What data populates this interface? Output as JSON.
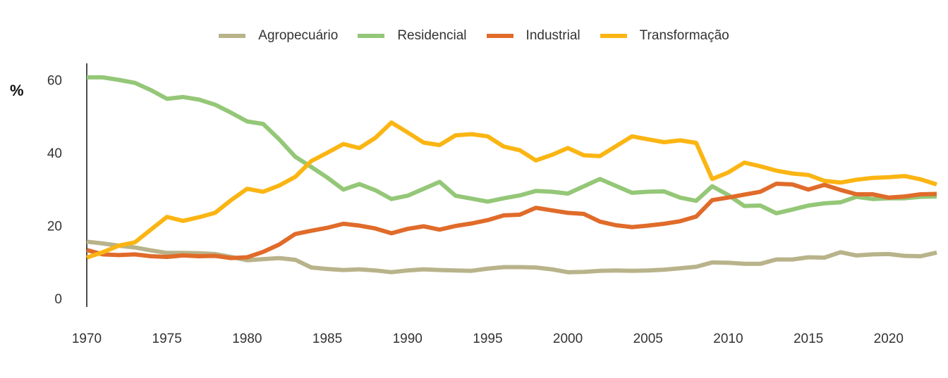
{
  "chart_data": {
    "type": "line",
    "ylabel": "%",
    "ylim": [
      0,
      63
    ],
    "xlim": [
      1970,
      2023
    ],
    "yticks": [
      0,
      20,
      40,
      60
    ],
    "xticks": [
      1970,
      1975,
      1980,
      1985,
      1990,
      1995,
      2000,
      2005,
      2010,
      2015,
      2020
    ],
    "legend_position": "top-center",
    "grid": false,
    "x": [
      1970,
      1971,
      1972,
      1973,
      1974,
      1975,
      1976,
      1977,
      1978,
      1979,
      1980,
      1981,
      1982,
      1983,
      1984,
      1985,
      1986,
      1987,
      1988,
      1989,
      1990,
      1991,
      1992,
      1993,
      1994,
      1995,
      1996,
      1997,
      1998,
      1999,
      2000,
      2001,
      2002,
      2003,
      2004,
      2005,
      2006,
      2007,
      2008,
      2009,
      2010,
      2011,
      2012,
      2013,
      2014,
      2015,
      2016,
      2017,
      2018,
      2019,
      2020,
      2021,
      2022,
      2023
    ],
    "series": [
      {
        "name": "Agropecuário",
        "color": "#b8b38a",
        "values": [
          15.6,
          15.1,
          14.5,
          14.0,
          13.2,
          12.5,
          12.5,
          12.4,
          12.2,
          11.4,
          10.5,
          10.8,
          11.1,
          10.6,
          8.5,
          8.1,
          7.8,
          8.0,
          7.7,
          7.2,
          7.7,
          8.0,
          7.8,
          7.7,
          7.6,
          8.2,
          8.6,
          8.6,
          8.5,
          8.0,
          7.2,
          7.3,
          7.6,
          7.7,
          7.6,
          7.7,
          7.9,
          8.3,
          8.7,
          9.9,
          9.8,
          9.5,
          9.5,
          10.7,
          10.7,
          11.3,
          11.2,
          12.7,
          11.8,
          12.1,
          12.2,
          11.7,
          11.6,
          12.6
        ]
      },
      {
        "name": "Residencial",
        "color": "#94c777",
        "values": [
          60.7,
          60.7,
          60.0,
          59.2,
          57.2,
          54.8,
          55.3,
          54.6,
          53.2,
          51.0,
          48.6,
          47.9,
          43.7,
          38.9,
          36.1,
          33.2,
          29.9,
          31.4,
          29.7,
          27.3,
          28.2,
          30.1,
          32.0,
          28.2,
          27.4,
          26.6,
          27.5,
          28.3,
          29.5,
          29.3,
          28.8,
          30.8,
          32.8,
          30.9,
          29.0,
          29.3,
          29.4,
          27.7,
          26.8,
          30.8,
          28.4,
          25.4,
          25.5,
          23.4,
          24.4,
          25.5,
          26.1,
          26.4,
          27.9,
          27.3,
          27.5,
          27.5,
          27.9,
          28.0
        ]
      },
      {
        "name": "Industrial",
        "color": "#e06b2a",
        "values": [
          13.3,
          12.1,
          11.9,
          12.1,
          11.6,
          11.4,
          11.8,
          11.6,
          11.7,
          11.1,
          11.3,
          12.8,
          14.8,
          17.7,
          18.6,
          19.4,
          20.5,
          20.0,
          19.2,
          17.9,
          19.1,
          19.8,
          18.9,
          19.9,
          20.6,
          21.5,
          22.8,
          23.0,
          24.9,
          24.2,
          23.5,
          23.2,
          21.1,
          20.1,
          19.6,
          20.0,
          20.5,
          21.2,
          22.5,
          27.0,
          27.7,
          28.5,
          29.3,
          31.5,
          31.3,
          29.9,
          31.2,
          29.8,
          28.6,
          28.6,
          27.7,
          28.0,
          28.6,
          28.7
        ]
      },
      {
        "name": "Transformação",
        "color": "#fbb513",
        "values": [
          11.2,
          12.7,
          14.5,
          15.4,
          18.9,
          22.4,
          21.3,
          22.3,
          23.5,
          27.0,
          30.1,
          29.3,
          31.0,
          33.4,
          37.7,
          40.0,
          42.4,
          41.3,
          44.1,
          48.3,
          45.6,
          42.8,
          42.1,
          44.8,
          45.1,
          44.5,
          41.7,
          40.7,
          37.9,
          39.4,
          41.3,
          39.3,
          39.1,
          41.8,
          44.5,
          43.7,
          42.9,
          43.4,
          42.7,
          32.8,
          34.6,
          37.3,
          36.3,
          35.1,
          34.3,
          33.9,
          32.3,
          31.8,
          32.6,
          33.1,
          33.3,
          33.6,
          32.7,
          31.3
        ]
      }
    ]
  }
}
